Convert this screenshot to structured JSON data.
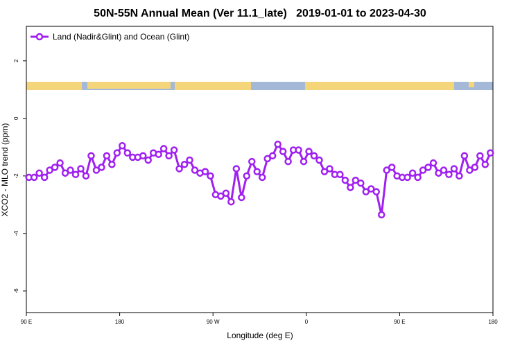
{
  "chart_data": {
    "type": "line",
    "title": "50N-55N Annual Mean (Ver 11.1_late)   2019-01-01 to 2023-04-30",
    "xlabel": "Longitude (deg E)",
    "ylabel": "XCO2 - MLO trend (ppm)",
    "x": [
      92.5,
      97.5,
      102.5,
      107.5,
      112.5,
      117.5,
      122.5,
      127.5,
      132.5,
      137.5,
      142.5,
      147.5,
      152.5,
      157.5,
      162.5,
      167.5,
      172.5,
      177.5,
      182.5,
      187.5,
      192.5,
      197.5,
      202.5,
      207.5,
      212.5,
      217.5,
      222.5,
      227.5,
      232.5,
      237.5,
      242.5,
      247.5,
      252.5,
      257.5,
      262.5,
      267.5,
      272.5,
      277.5,
      282.5,
      287.5,
      292.5,
      297.5,
      302.5,
      307.5,
      312.5,
      317.5,
      322.5,
      327.5,
      332.5,
      337.5,
      342.5,
      347.5,
      352.5,
      357.5,
      362.5,
      367.5,
      372.5,
      377.5,
      382.5,
      387.5,
      392.5,
      397.5,
      402.5,
      407.5,
      412.5,
      417.5,
      422.5,
      427.5,
      432.5,
      437.5,
      442.5,
      447.5,
      452.5,
      457.5,
      462.5,
      467.5,
      472.5,
      477.5,
      482.5,
      487.5,
      492.5,
      497.5,
      502.5,
      507.5,
      512.5,
      517.5,
      522.5,
      527.5,
      532.5,
      537.5
    ],
    "series": [
      {
        "name": "Land (Nadir&Glint) and Ocean (Glint)",
        "color": "#a020f0",
        "values": [
          -2.05,
          -2.05,
          -1.9,
          -2.05,
          -1.8,
          -1.7,
          -1.55,
          -1.9,
          -1.8,
          -1.95,
          -1.75,
          -2.0,
          -1.3,
          -1.8,
          -1.7,
          -1.3,
          -1.6,
          -1.2,
          -0.95,
          -1.2,
          -1.35,
          -1.35,
          -1.3,
          -1.45,
          -1.2,
          -1.25,
          -1.05,
          -1.3,
          -1.1,
          -1.75,
          -1.6,
          -1.45,
          -1.8,
          -1.9,
          -1.85,
          -2.0,
          -2.65,
          -2.7,
          -2.6,
          -2.9,
          -1.75,
          -2.75,
          -2.0,
          -1.5,
          -1.85,
          -2.05,
          -1.4,
          -1.3,
          -0.9,
          -1.15,
          -1.5,
          -1.1,
          -1.1,
          -1.5,
          -1.15,
          -1.3,
          -1.45,
          -1.85,
          -1.75,
          -1.95,
          -1.95,
          -2.15,
          -2.4,
          -2.15,
          -2.25,
          -2.55,
          -2.45,
          -2.55,
          -3.35,
          -1.8,
          -1.7,
          -2.0,
          -2.05,
          -2.05,
          -1.9,
          -2.05,
          -1.8,
          -1.7,
          -1.55,
          -1.9,
          -1.8,
          -1.95,
          -1.75,
          -2.0,
          -1.3,
          -1.8,
          -1.7,
          -1.3,
          -1.6,
          -1.2
        ]
      }
    ],
    "xlim": [
      90,
      540
    ],
    "xticks": [
      {
        "value": 90,
        "label": "90 E"
      },
      {
        "value": 180,
        "label": "180"
      },
      {
        "value": 270,
        "label": "90 W"
      },
      {
        "value": 360,
        "label": "0"
      },
      {
        "value": 450,
        "label": "90 E"
      },
      {
        "value": 540,
        "label": "180"
      }
    ],
    "ylim": [
      -6.75,
      3.2
    ],
    "yticks": [
      2,
      0,
      -2,
      -4,
      -6
    ],
    "legend": "top-left"
  }
}
